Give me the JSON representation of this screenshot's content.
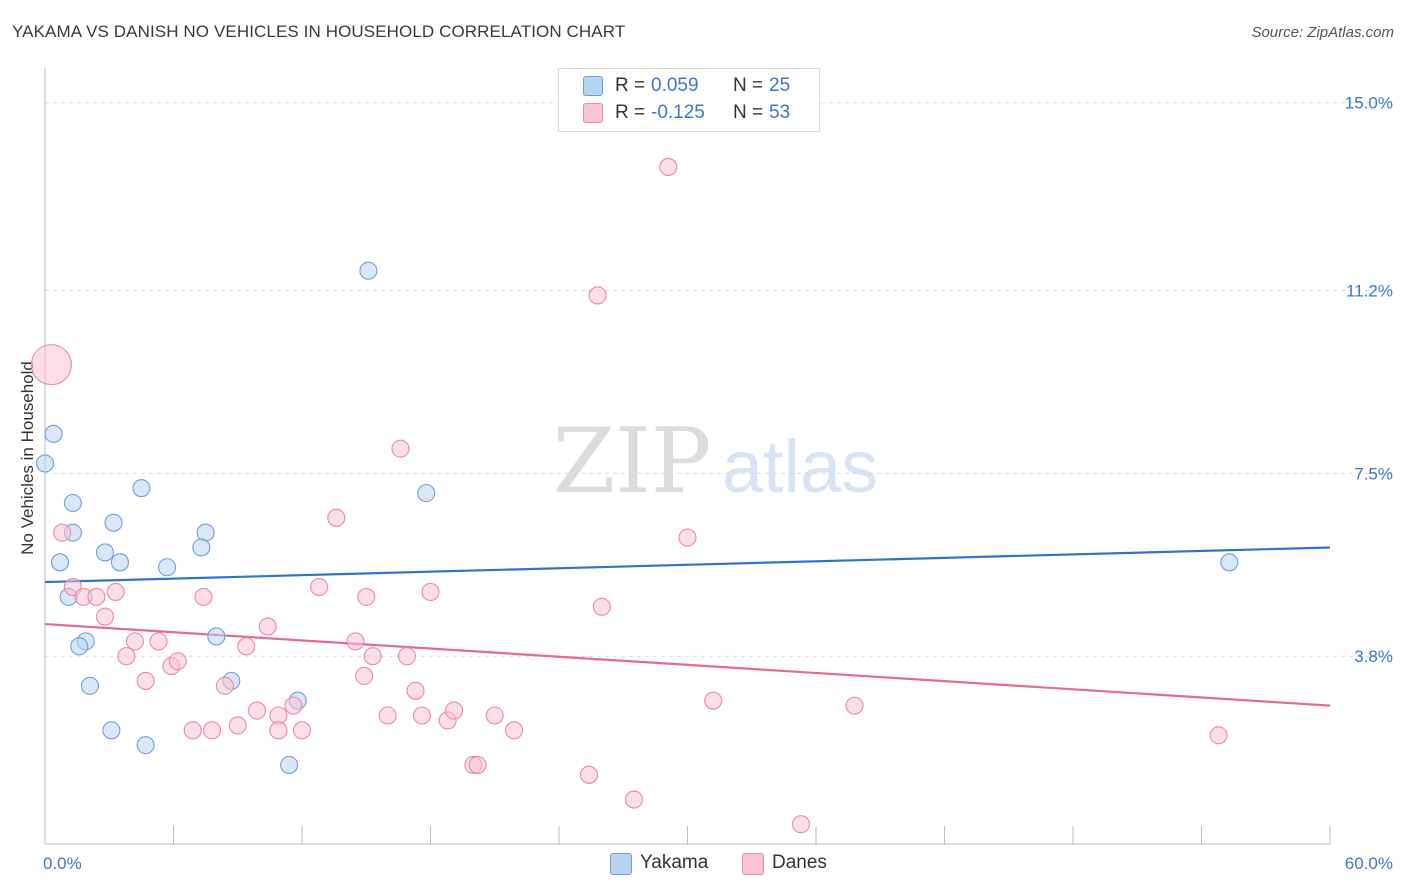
{
  "title": "YAKAMA VS DANISH NO VEHICLES IN HOUSEHOLD CORRELATION CHART",
  "source": "Source: ZipAtlas.com",
  "watermark": {
    "zip": "ZIP",
    "atlas": "atlas"
  },
  "legend_stats": [
    {
      "r_label": "R =",
      "r_value": "0.059",
      "n_label": "N =",
      "n_value": "25"
    },
    {
      "r_label": "R =",
      "r_value": "-0.125",
      "n_label": "N =",
      "n_value": "53"
    }
  ],
  "legend_bottom": [
    "Yakama",
    "Danes"
  ],
  "colors": {
    "yakama_fill": "#b9d3f3",
    "yakama_stroke": "#6f9fd8",
    "yakama_line": "#2f74c8",
    "danes_fill": "#f8c3d3",
    "danes_stroke": "#e98aaa",
    "danes_line": "#e36a93",
    "tick_label": "#3b78c9",
    "grid": "#d9d9d9"
  },
  "chart_data": {
    "type": "scatter",
    "title": "YAKAMA VS DANISH NO VEHICLES IN HOUSEHOLD CORRELATION CHART",
    "xlabel": "",
    "ylabel": "No Vehicles in Household",
    "xlim": [
      0,
      60
    ],
    "ylim": [
      0,
      15.5
    ],
    "x_tick_labels": [
      {
        "value": 0,
        "label": "0.0%"
      },
      {
        "value": 60,
        "label": "60.0%"
      }
    ],
    "y_tick_labels": [
      {
        "value": 3.8,
        "label": "3.8%"
      },
      {
        "value": 7.5,
        "label": "7.5%"
      },
      {
        "value": 11.2,
        "label": "11.2%"
      },
      {
        "value": 15.0,
        "label": "15.0%"
      }
    ],
    "grid": "horizontal dashed",
    "legend_placement": "top-center and bottom-center",
    "series": [
      {
        "name": "Yakama",
        "trend": {
          "x": [
            0,
            60
          ],
          "y": [
            5.3,
            6.0
          ]
        },
        "points": [
          {
            "x": 0.4,
            "y": 8.3
          },
          {
            "x": 0.0,
            "y": 7.7
          },
          {
            "x": 1.3,
            "y": 6.9
          },
          {
            "x": 4.5,
            "y": 7.2
          },
          {
            "x": 1.3,
            "y": 6.3
          },
          {
            "x": 3.2,
            "y": 6.5
          },
          {
            "x": 7.5,
            "y": 6.3
          },
          {
            "x": 7.3,
            "y": 6.0
          },
          {
            "x": 2.8,
            "y": 5.9
          },
          {
            "x": 0.7,
            "y": 5.7
          },
          {
            "x": 3.5,
            "y": 5.7
          },
          {
            "x": 5.7,
            "y": 5.6
          },
          {
            "x": 1.1,
            "y": 5.0
          },
          {
            "x": 1.9,
            "y": 4.1
          },
          {
            "x": 1.6,
            "y": 4.0
          },
          {
            "x": 8.0,
            "y": 4.2
          },
          {
            "x": 2.1,
            "y": 3.2
          },
          {
            "x": 8.7,
            "y": 3.3
          },
          {
            "x": 11.8,
            "y": 2.9
          },
          {
            "x": 3.1,
            "y": 2.3
          },
          {
            "x": 4.7,
            "y": 2.0
          },
          {
            "x": 11.4,
            "y": 1.6
          },
          {
            "x": 15.1,
            "y": 11.6
          },
          {
            "x": 17.8,
            "y": 7.1
          },
          {
            "x": 55.3,
            "y": 5.7
          }
        ]
      },
      {
        "name": "Danes",
        "trend": {
          "x": [
            0,
            60
          ],
          "y": [
            4.45,
            2.8
          ]
        },
        "points": [
          {
            "x": 0.3,
            "y": 9.7,
            "size": "large"
          },
          {
            "x": 0.8,
            "y": 6.3
          },
          {
            "x": 1.3,
            "y": 5.2
          },
          {
            "x": 1.8,
            "y": 5.0
          },
          {
            "x": 2.4,
            "y": 5.0
          },
          {
            "x": 3.3,
            "y": 5.1
          },
          {
            "x": 2.8,
            "y": 4.6
          },
          {
            "x": 4.2,
            "y": 4.1
          },
          {
            "x": 5.3,
            "y": 4.1
          },
          {
            "x": 3.8,
            "y": 3.8
          },
          {
            "x": 5.9,
            "y": 3.6
          },
          {
            "x": 6.2,
            "y": 3.7
          },
          {
            "x": 4.7,
            "y": 3.3
          },
          {
            "x": 7.4,
            "y": 5.0
          },
          {
            "x": 8.4,
            "y": 3.2
          },
          {
            "x": 9.4,
            "y": 4.0
          },
          {
            "x": 10.4,
            "y": 4.4
          },
          {
            "x": 12.8,
            "y": 5.2
          },
          {
            "x": 13.6,
            "y": 6.6
          },
          {
            "x": 14.5,
            "y": 4.1
          },
          {
            "x": 14.9,
            "y": 3.4
          },
          {
            "x": 15.0,
            "y": 5.0
          },
          {
            "x": 15.3,
            "y": 3.8
          },
          {
            "x": 16.0,
            "y": 2.6
          },
          {
            "x": 16.6,
            "y": 8.0
          },
          {
            "x": 16.9,
            "y": 3.8
          },
          {
            "x": 17.3,
            "y": 3.1
          },
          {
            "x": 17.6,
            "y": 2.6
          },
          {
            "x": 18.0,
            "y": 5.1
          },
          {
            "x": 18.8,
            "y": 2.5
          },
          {
            "x": 19.1,
            "y": 2.7
          },
          {
            "x": 10.9,
            "y": 2.6
          },
          {
            "x": 11.6,
            "y": 2.8
          },
          {
            "x": 12.0,
            "y": 2.3
          },
          {
            "x": 9.9,
            "y": 2.7
          },
          {
            "x": 9.0,
            "y": 2.4
          },
          {
            "x": 7.8,
            "y": 2.3
          },
          {
            "x": 6.9,
            "y": 2.3
          },
          {
            "x": 10.9,
            "y": 2.3
          },
          {
            "x": 21.0,
            "y": 2.6
          },
          {
            "x": 21.9,
            "y": 2.3
          },
          {
            "x": 20.0,
            "y": 1.6
          },
          {
            "x": 20.2,
            "y": 1.6
          },
          {
            "x": 25.4,
            "y": 1.4
          },
          {
            "x": 26.0,
            "y": 4.8
          },
          {
            "x": 27.5,
            "y": 0.9
          },
          {
            "x": 30.0,
            "y": 6.2
          },
          {
            "x": 31.2,
            "y": 2.9
          },
          {
            "x": 35.3,
            "y": 0.4
          },
          {
            "x": 37.8,
            "y": 2.8
          },
          {
            "x": 25.8,
            "y": 11.1
          },
          {
            "x": 29.1,
            "y": 13.7
          },
          {
            "x": 54.8,
            "y": 2.2
          }
        ]
      }
    ]
  }
}
